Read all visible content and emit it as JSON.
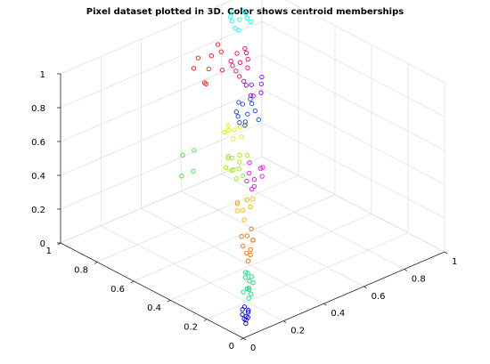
{
  "chart_data": {
    "type": "scatter",
    "dimensions": 3,
    "title": "Pixel dataset plotted in 3D. Color shows centroid memberships",
    "xlabel": "",
    "ylabel": "",
    "zlabel": "",
    "xlim": [
      0,
      1
    ],
    "ylim": [
      0,
      1
    ],
    "zlim": [
      0,
      1
    ],
    "x_ticks": [
      "0",
      "0.2",
      "0.4",
      "0.6",
      "0.8",
      "1"
    ],
    "y_ticks": [
      "0",
      "0.2",
      "0.4",
      "0.6",
      "0.8",
      "1"
    ],
    "z_ticks": [
      "0",
      "0.2",
      "0.4",
      "0.6",
      "0.8",
      "1"
    ],
    "grid": true,
    "legend": "none",
    "marker": "circle (open)",
    "series": [
      {
        "color": "#0000ff",
        "points": [
          [
            0.04,
            0.03,
            0.05
          ],
          [
            0.05,
            0.04,
            0.06
          ],
          [
            0.06,
            0.05,
            0.07
          ],
          [
            0.05,
            0.06,
            0.08
          ],
          [
            0.07,
            0.05,
            0.09
          ],
          [
            0.06,
            0.07,
            0.1
          ],
          [
            0.08,
            0.06,
            0.09
          ],
          [
            0.05,
            0.05,
            0.06
          ],
          [
            0.07,
            0.07,
            0.11
          ],
          [
            0.06,
            0.04,
            0.07
          ]
        ]
      },
      {
        "color": "#00e676",
        "points": [
          [
            0.1,
            0.08,
            0.14
          ],
          [
            0.12,
            0.1,
            0.17
          ],
          [
            0.11,
            0.09,
            0.19
          ],
          [
            0.13,
            0.11,
            0.21
          ],
          [
            0.12,
            0.12,
            0.23
          ],
          [
            0.14,
            0.1,
            0.2
          ],
          [
            0.1,
            0.11,
            0.16
          ],
          [
            0.13,
            0.13,
            0.25
          ],
          [
            0.11,
            0.1,
            0.18
          ],
          [
            0.15,
            0.12,
            0.22
          ],
          [
            0.12,
            0.09,
            0.15
          ],
          [
            0.14,
            0.13,
            0.24
          ]
        ]
      },
      {
        "color": "#ff6600",
        "points": [
          [
            0.17,
            0.16,
            0.28
          ],
          [
            0.2,
            0.18,
            0.32
          ],
          [
            0.18,
            0.2,
            0.34
          ],
          [
            0.22,
            0.19,
            0.36
          ],
          [
            0.19,
            0.17,
            0.3
          ],
          [
            0.21,
            0.21,
            0.38
          ],
          [
            0.23,
            0.2,
            0.35
          ],
          [
            0.18,
            0.18,
            0.31
          ],
          [
            0.24,
            0.22,
            0.4
          ],
          [
            0.2,
            0.23,
            0.37
          ]
        ]
      },
      {
        "color": "#ffaa00",
        "points": [
          [
            0.25,
            0.27,
            0.42
          ],
          [
            0.27,
            0.3,
            0.45
          ],
          [
            0.29,
            0.28,
            0.47
          ],
          [
            0.26,
            0.32,
            0.44
          ],
          [
            0.3,
            0.31,
            0.49
          ],
          [
            0.28,
            0.34,
            0.46
          ],
          [
            0.31,
            0.29,
            0.5
          ],
          [
            0.27,
            0.33,
            0.48
          ]
        ]
      },
      {
        "color": "#99ee00",
        "points": [
          [
            0.33,
            0.4,
            0.55
          ],
          [
            0.36,
            0.42,
            0.58
          ],
          [
            0.35,
            0.45,
            0.56
          ],
          [
            0.38,
            0.44,
            0.6
          ],
          [
            0.34,
            0.47,
            0.57
          ],
          [
            0.4,
            0.46,
            0.62
          ],
          [
            0.37,
            0.41,
            0.54
          ],
          [
            0.39,
            0.49,
            0.59
          ],
          [
            0.36,
            0.48,
            0.61
          ],
          [
            0.41,
            0.43,
            0.63
          ],
          [
            0.35,
            0.44,
            0.57
          ],
          [
            0.38,
            0.5,
            0.6
          ]
        ]
      },
      {
        "color": "#ddee00",
        "points": [
          [
            0.45,
            0.55,
            0.64
          ],
          [
            0.48,
            0.58,
            0.66
          ],
          [
            0.5,
            0.56,
            0.62
          ],
          [
            0.47,
            0.6,
            0.68
          ],
          [
            0.52,
            0.59,
            0.65
          ],
          [
            0.49,
            0.62,
            0.63
          ],
          [
            0.53,
            0.57,
            0.67
          ],
          [
            0.46,
            0.61,
            0.64
          ]
        ]
      },
      {
        "color": "#ee00ee",
        "points": [
          [
            0.36,
            0.35,
            0.5
          ],
          [
            0.4,
            0.38,
            0.52
          ],
          [
            0.42,
            0.36,
            0.54
          ],
          [
            0.38,
            0.4,
            0.51
          ],
          [
            0.44,
            0.39,
            0.56
          ],
          [
            0.41,
            0.42,
            0.53
          ],
          [
            0.46,
            0.4,
            0.55
          ],
          [
            0.39,
            0.37,
            0.49
          ],
          [
            0.43,
            0.44,
            0.57
          ]
        ]
      },
      {
        "color": "#9900ff",
        "points": [
          [
            0.6,
            0.62,
            0.78
          ],
          [
            0.64,
            0.66,
            0.8
          ],
          [
            0.66,
            0.63,
            0.76
          ],
          [
            0.62,
            0.68,
            0.82
          ],
          [
            0.68,
            0.65,
            0.79
          ],
          [
            0.65,
            0.7,
            0.77
          ],
          [
            0.7,
            0.67,
            0.81
          ],
          [
            0.63,
            0.64,
            0.75
          ]
        ]
      },
      {
        "color": "#1144ee",
        "points": [
          [
            0.48,
            0.52,
            0.72
          ],
          [
            0.52,
            0.55,
            0.75
          ],
          [
            0.5,
            0.58,
            0.73
          ],
          [
            0.54,
            0.53,
            0.77
          ],
          [
            0.51,
            0.6,
            0.74
          ],
          [
            0.56,
            0.57,
            0.78
          ],
          [
            0.49,
            0.56,
            0.71
          ],
          [
            0.55,
            0.61,
            0.76
          ],
          [
            0.53,
            0.5,
            0.74
          ],
          [
            0.57,
            0.59,
            0.79
          ],
          [
            0.5,
            0.54,
            0.72
          ],
          [
            0.54,
            0.62,
            0.77
          ]
        ]
      },
      {
        "color": "#ee0066",
        "points": [
          [
            0.58,
            0.66,
            0.88
          ],
          [
            0.62,
            0.7,
            0.92
          ],
          [
            0.6,
            0.72,
            0.9
          ],
          [
            0.64,
            0.68,
            0.94
          ],
          [
            0.61,
            0.74,
            0.91
          ],
          [
            0.66,
            0.71,
            0.95
          ],
          [
            0.59,
            0.69,
            0.89
          ],
          [
            0.65,
            0.75,
            0.93
          ],
          [
            0.63,
            0.67,
            0.9
          ],
          [
            0.67,
            0.73,
            0.96
          ]
        ]
      },
      {
        "color": "#ff1111",
        "points": [
          [
            0.45,
            0.7,
            0.88
          ],
          [
            0.5,
            0.74,
            0.92
          ],
          [
            0.55,
            0.78,
            0.95
          ],
          [
            0.48,
            0.8,
            0.9
          ],
          [
            0.58,
            0.76,
            0.97
          ],
          [
            0.52,
            0.82,
            0.93
          ],
          [
            0.47,
            0.73,
            0.86
          ],
          [
            0.6,
            0.8,
            0.98
          ],
          [
            0.54,
            0.71,
            0.91
          ]
        ]
      },
      {
        "color": "#00ffee",
        "points": [
          [
            0.74,
            0.84,
            0.97
          ],
          [
            0.78,
            0.88,
            0.99
          ],
          [
            0.76,
            0.9,
            0.98
          ],
          [
            0.8,
            0.86,
            1.0
          ],
          [
            0.77,
            0.92,
            0.99
          ],
          [
            0.82,
            0.89,
            1.0
          ],
          [
            0.75,
            0.87,
            0.96
          ],
          [
            0.79,
            0.93,
            1.0
          ],
          [
            0.81,
            0.85,
            0.98
          ],
          [
            0.83,
            0.91,
            1.0
          ]
        ]
      },
      {
        "color": "#33ee33",
        "points": [
          [
            0.25,
            0.55,
            0.55
          ],
          [
            0.3,
            0.6,
            0.62
          ],
          [
            0.22,
            0.58,
            0.52
          ],
          [
            0.28,
            0.64,
            0.58
          ]
        ]
      }
    ]
  }
}
